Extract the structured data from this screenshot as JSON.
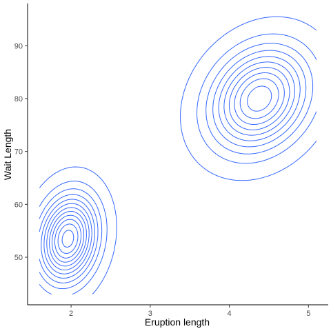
{
  "chart_data": {
    "type": "contour",
    "title": "",
    "xlabel": "Eruption length",
    "ylabel": "Wait Length",
    "x_ticks": [
      2,
      3,
      4,
      5
    ],
    "y_ticks": [
      50,
      60,
      70,
      80,
      90
    ],
    "xlim": [
      1.45,
      5.25
    ],
    "ylim": [
      41,
      98
    ],
    "grid": false,
    "legend": "none",
    "line_color": "#3366ff",
    "density_peaks": [
      {
        "x": 4.38,
        "y": 80.0
      },
      {
        "x": 1.96,
        "y": 53.5
      }
    ],
    "data_range": {
      "x": [
        1.6,
        5.1
      ],
      "y": [
        43,
        96
      ]
    },
    "contour_levels": 12
  }
}
